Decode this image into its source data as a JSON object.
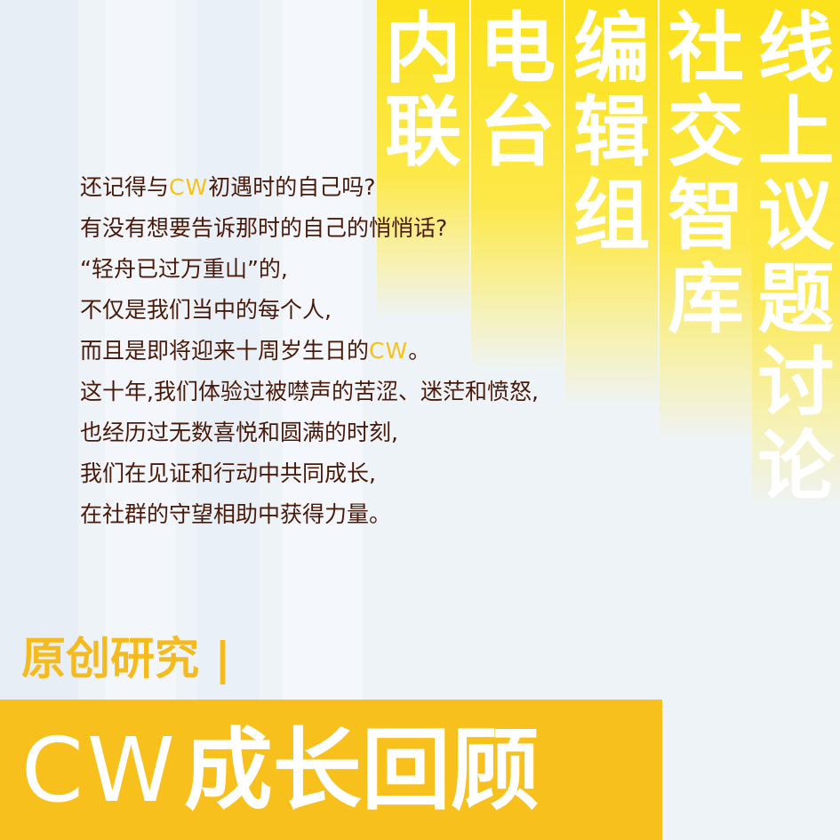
{
  "columns": [
    {
      "label": "内联",
      "chars": [
        "内",
        "联"
      ]
    },
    {
      "label": "电台",
      "chars": [
        "电",
        "台"
      ]
    },
    {
      "label": "编辑组",
      "chars": [
        "编",
        "辑",
        "组"
      ]
    },
    {
      "label": "社交智库",
      "chars": [
        "社",
        "交",
        "智",
        "库"
      ]
    },
    {
      "label": "线上议题讨论",
      "chars": [
        "线",
        "上",
        "议",
        "题",
        "讨",
        "论"
      ]
    }
  ],
  "poem": {
    "lines": [
      {
        "before": "还记得与",
        "cw": "CW",
        "after": "初遇时的自己吗?"
      },
      {
        "before": "有没有想要告诉那时的自己的悄悄话?",
        "cw": "",
        "after": ""
      },
      {
        "before": "“轻舟已过万重山”的,",
        "cw": "",
        "after": ""
      },
      {
        "before": "不仅是我们当中的每个人,",
        "cw": "",
        "after": ""
      },
      {
        "before": "而且是即将迎来十周岁生日的",
        "cw": "CW",
        "after": "。"
      },
      {
        "before": "这十年,我们体验过被噤声的苦涩、迷茫和愤怒,",
        "cw": "",
        "after": ""
      },
      {
        "before": "也经历过无数喜悦和圆满的时刻,",
        "cw": "",
        "after": ""
      },
      {
        "before": "我们在见证和行动中共同成长,",
        "cw": "",
        "after": ""
      },
      {
        "before": "在社群的守望相助中获得力量。",
        "cw": "",
        "after": ""
      }
    ]
  },
  "series_label": "原创研究 |",
  "banner": {
    "cw": "CW",
    "title": "成长回顾"
  },
  "colors": {
    "accent": "#f8c01c",
    "text": "#4a1a08",
    "background": "#eef3f8"
  }
}
